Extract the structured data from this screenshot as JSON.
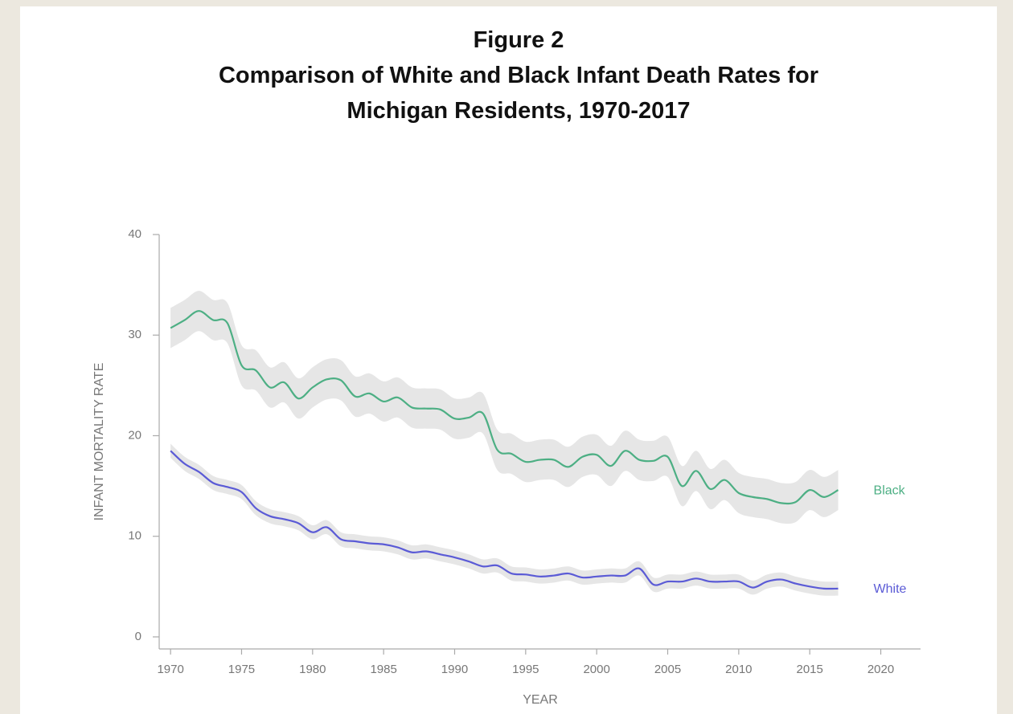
{
  "chart_data": {
    "type": "line",
    "title": "Figure 2",
    "subtitle": "Comparison of White and Black Infant Death Rates for Michigan Residents, 1970-2017",
    "xlabel": "YEAR",
    "ylabel": "INFANT MORTALITY RATE",
    "x": [
      1970,
      1971,
      1972,
      1973,
      1974,
      1975,
      1976,
      1977,
      1978,
      1979,
      1980,
      1981,
      1982,
      1983,
      1984,
      1985,
      1986,
      1987,
      1988,
      1989,
      1990,
      1991,
      1992,
      1993,
      1994,
      1995,
      1996,
      1997,
      1998,
      1999,
      2000,
      2001,
      2002,
      2003,
      2004,
      2005,
      2006,
      2007,
      2008,
      2009,
      2010,
      2011,
      2012,
      2013,
      2014,
      2015,
      2016,
      2017
    ],
    "series": [
      {
        "name": "Black",
        "color": "#4daf84",
        "ci": 2.0,
        "values": [
          30.7,
          31.5,
          32.4,
          31.5,
          31.2,
          27.0,
          26.5,
          24.8,
          25.3,
          23.7,
          24.8,
          25.6,
          25.5,
          23.9,
          24.2,
          23.4,
          23.8,
          22.8,
          22.7,
          22.6,
          21.7,
          21.8,
          22.2,
          18.6,
          18.2,
          17.4,
          17.6,
          17.6,
          16.9,
          17.9,
          18.1,
          17.0,
          18.5,
          17.6,
          17.5,
          17.9,
          15.0,
          16.5,
          14.7,
          15.6,
          14.3,
          13.9,
          13.7,
          13.3,
          13.4,
          14.6,
          13.9,
          14.6
        ]
      },
      {
        "name": "White",
        "color": "#5b5bd6",
        "ci": 0.7,
        "values": [
          18.5,
          17.2,
          16.4,
          15.3,
          14.9,
          14.4,
          12.8,
          12.0,
          11.7,
          11.3,
          10.4,
          10.9,
          9.7,
          9.5,
          9.3,
          9.2,
          8.9,
          8.4,
          8.5,
          8.2,
          7.9,
          7.5,
          7.0,
          7.1,
          6.3,
          6.2,
          6.0,
          6.1,
          6.3,
          5.9,
          6.0,
          6.1,
          6.1,
          6.8,
          5.2,
          5.5,
          5.5,
          5.8,
          5.5,
          5.5,
          5.5,
          4.9,
          5.5,
          5.7,
          5.3,
          5.0,
          4.8,
          4.8
        ]
      }
    ],
    "xlim": [
      1969.2,
      2022.8
    ],
    "xticks": [
      1970,
      1975,
      1980,
      1985,
      1990,
      1995,
      2000,
      2005,
      2010,
      2015,
      2020
    ],
    "ylim": [
      -1.2,
      40
    ],
    "yticks": [
      0,
      10,
      20,
      30,
      40
    ],
    "band_color": "#e6e6e6"
  }
}
